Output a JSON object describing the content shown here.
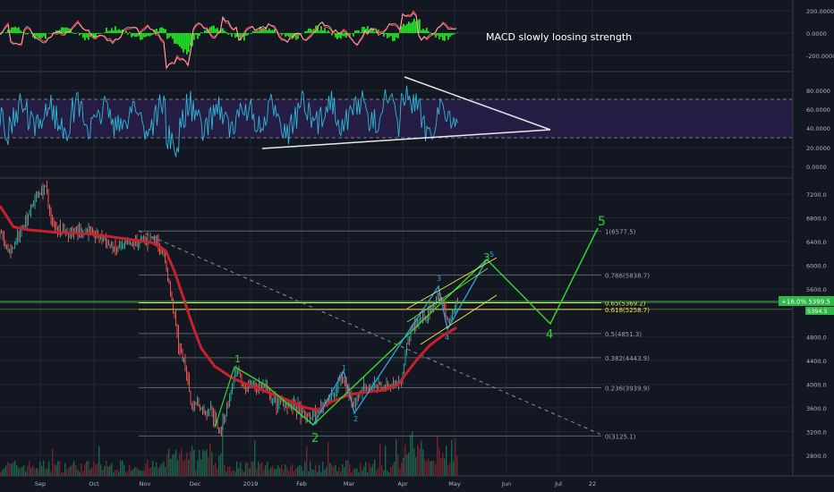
{
  "colors": {
    "background": "#131722",
    "grid": "#222733",
    "text": "#b2b5be",
    "up": "#26a69a",
    "down": "#ef5350",
    "ma": "#c8202f",
    "wave": "#34d12f",
    "wave_blue": "#2ea5e0",
    "fib": "#7f8391",
    "fib_yellow": "#f2e94e",
    "rsi_line": "#2fb7d6",
    "rsi_band": "#2a1e4a",
    "macd_line": "#ff3b3b",
    "macd_hist": "#22e022",
    "triangle": "#e8e8e8",
    "price_tag": "#2fb84a"
  },
  "macd_panel": {
    "annotation": "MACD slowly loosing strength",
    "axis_labels": [
      "200.0000",
      "0.0000",
      "-200.0000"
    ]
  },
  "rsi_panel": {
    "axis_labels": [
      "80.0000",
      "60.0000",
      "40.0000",
      "20.0000",
      "0.0000"
    ]
  },
  "price_panel": {
    "axis_labels": [
      "7200.0",
      "6800.0",
      "6400.0",
      "6000.0",
      "5600.0",
      "4800.0",
      "4400.0",
      "4000.0",
      "3600.0",
      "3200.0",
      "2800.0"
    ],
    "last_price_tag": "+16.0% 5399.5",
    "last_price_tag_small": "5394.5"
  },
  "time_axis": {
    "labels": [
      "Sep",
      "Oct",
      "Nov",
      "Dec",
      "2019",
      "Feb",
      "Mar",
      "Apr",
      "May",
      "Jun",
      "Jul",
      "22"
    ]
  },
  "chart_data": {
    "type": "line",
    "price_axis_range": [
      2600,
      7600
    ],
    "fibonacci_levels": [
      {
        "ratio": "1",
        "price": 6577.5,
        "label": "1(6577.5)"
      },
      {
        "ratio": "0.786",
        "price": 5838.7,
        "label": "0.786(5838.7)"
      },
      {
        "ratio": "0.65",
        "price": 5369.2,
        "label": "0.65(5369.2)"
      },
      {
        "ratio": "0.618",
        "price": 5258.7,
        "label": "0.618(5258.7)"
      },
      {
        "ratio": "0.5",
        "price": 4851.3,
        "label": "0.5(4851.3)"
      },
      {
        "ratio": "0.382",
        "price": 4443.9,
        "label": "0.382(4443.9)"
      },
      {
        "ratio": "0.236",
        "price": 3939.9,
        "label": "0.236(3939.9)"
      },
      {
        "ratio": "0",
        "price": 3125.1,
        "label": "0(3125.1)"
      }
    ],
    "elliott_wave_labels": [
      "1",
      "2",
      "1",
      "2",
      "3",
      "4",
      "3",
      "5",
      "4",
      "5"
    ]
  }
}
